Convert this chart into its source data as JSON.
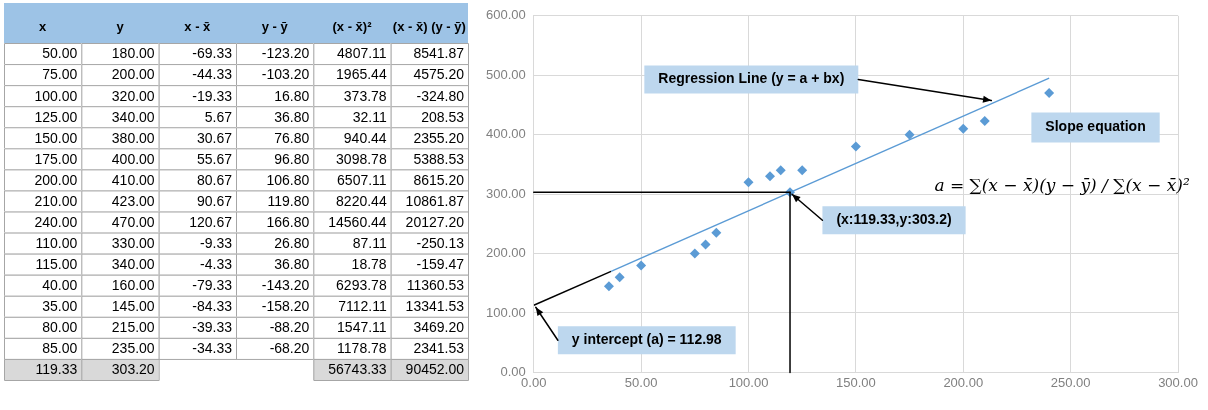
{
  "chart_data": [
    {
      "type": "heatmap",
      "ylabel": "x",
      "categories": [
        "y",
        "x - x̄",
        "y - ȳ",
        "(x - x̄)²",
        "(x - x̄) (y - ȳ)"
      ],
      "y_categories": [
        "50.00",
        "75.00",
        "100.00",
        "125.00",
        "150.00",
        "175.00",
        "200.00",
        "210.00",
        "240.00",
        "110.00",
        "115.00",
        "40.00",
        "35.00",
        "80.00",
        "85.00",
        "119.33"
      ],
      "cells": [
        [
          180,
          -69.33,
          -123.2,
          4807.11,
          8541.87
        ],
        [
          200,
          -44.33,
          -103.2,
          1965.44,
          4575.2
        ],
        [
          320,
          -19.33,
          16.8,
          373.78,
          -324.8
        ],
        [
          340,
          5.67,
          36.8,
          32.11,
          208.53
        ],
        [
          380,
          30.67,
          76.8,
          940.44,
          2355.2
        ],
        [
          400,
          55.67,
          96.8,
          3098.78,
          5388.53
        ],
        [
          410,
          80.67,
          106.8,
          6507.11,
          8615.2
        ],
        [
          423,
          90.67,
          119.8,
          8220.44,
          10861.87
        ],
        [
          470,
          120.67,
          166.8,
          14560.44,
          20127.2
        ],
        [
          330,
          -9.33,
          26.8,
          87.11,
          -250.13
        ],
        [
          340,
          -4.33,
          36.8,
          18.78,
          -159.47
        ],
        [
          160,
          -79.33,
          -143.2,
          6293.78,
          11360.53
        ],
        [
          145,
          -84.33,
          -158.2,
          7112.11,
          13341.53
        ],
        [
          215,
          -39.33,
          -88.2,
          1547.11,
          3469.2
        ],
        [
          235,
          -34.33,
          -68.2,
          1178.78,
          2341.53
        ],
        [
          303.2,
          null,
          null,
          56743.33,
          90452
        ]
      ],
      "cell_labels": [
        [
          "180.00",
          "-69.33",
          "-123.20",
          "4807.11",
          "8541.87"
        ],
        [
          "200.00",
          "-44.33",
          "-103.20",
          "1965.44",
          "4575.20"
        ],
        [
          "320.00",
          "-19.33",
          "16.80",
          "373.78",
          "-324.80"
        ],
        [
          "340.00",
          "5.67",
          "36.80",
          "32.11",
          "208.53"
        ],
        [
          "380.00",
          "30.67",
          "76.80",
          "940.44",
          "2355.20"
        ],
        [
          "400.00",
          "55.67",
          "96.80",
          "3098.78",
          "5388.53"
        ],
        [
          "410.00",
          "80.67",
          "106.80",
          "6507.11",
          "8615.20"
        ],
        [
          "423.00",
          "90.67",
          "119.80",
          "8220.44",
          "10861.87"
        ],
        [
          "470.00",
          "120.67",
          "166.80",
          "14560.44",
          "20127.20"
        ],
        [
          "330.00",
          "-9.33",
          "26.80",
          "87.11",
          "-250.13"
        ],
        [
          "340.00",
          "-4.33",
          "36.80",
          "18.78",
          "-159.47"
        ],
        [
          "160.00",
          "-79.33",
          "-143.20",
          "6293.78",
          "11360.53"
        ],
        [
          "145.00",
          "-84.33",
          "-158.20",
          "7112.11",
          "13341.53"
        ],
        [
          "215.00",
          "-39.33",
          "-88.20",
          "1547.11",
          "3469.20"
        ],
        [
          "235.00",
          "-34.33",
          "-68.20",
          "1178.78",
          "2341.53"
        ],
        [
          "303.20",
          null,
          null,
          "56743.33",
          "90452.00"
        ]
      ]
    },
    {
      "type": "scatter",
      "xlim": [
        0,
        300
      ],
      "ylim": [
        0,
        600
      ],
      "xticks": [
        {
          "value": 0,
          "label": "0.00"
        },
        {
          "value": 50,
          "label": "50.00"
        },
        {
          "value": 100,
          "label": "100.00"
        },
        {
          "value": 150,
          "label": "150.00"
        },
        {
          "value": 200,
          "label": "200.00"
        },
        {
          "value": 250,
          "label": "250.00"
        },
        {
          "value": 300,
          "label": "300.00"
        }
      ],
      "yticks": [
        {
          "value": 0,
          "label": "0.00"
        },
        {
          "value": 100,
          "label": "100.00"
        },
        {
          "value": 200,
          "label": "200.00"
        },
        {
          "value": 300,
          "label": "300.00"
        },
        {
          "value": 400,
          "label": "400.00"
        },
        {
          "value": 500,
          "label": "500.00"
        },
        {
          "value": 600,
          "label": "600.00"
        }
      ],
      "grid": true,
      "legend": false,
      "marker": "diamond",
      "series": [
        {
          "type": "scatter",
          "color": "#5b9bd5",
          "x": [
            50,
            75,
            100,
            125,
            150,
            175,
            200,
            210,
            240,
            110,
            115,
            40,
            35,
            80,
            85,
            119.33
          ],
          "values": [
            180,
            200,
            320,
            340,
            380,
            400,
            410,
            423,
            470,
            330,
            340,
            160,
            145,
            215,
            235,
            303
          ]
        },
        {
          "type": "line",
          "color": "#5b9bd5",
          "marker": "none",
          "x": [
            36,
            240
          ],
          "values": [
            170,
            495
          ]
        },
        {
          "type": "line",
          "color": "#000000",
          "marker": "none",
          "x": [
            0,
            36
          ],
          "values": [
            113,
            170
          ]
        }
      ],
      "ref_lines": [
        {
          "axis": "y",
          "value": 303.2,
          "color": "#000000"
        },
        {
          "axis": "x",
          "value": 119.33,
          "color": "#000000"
        }
      ],
      "annotations": [
        {
          "text": "Regression Line (y = a + bx)",
          "x": 214,
          "y": 454
        },
        {
          "text": "(x:119.33,y:303.2)",
          "x": 119.33,
          "y": 303.2
        },
        {
          "text": "y intercept (a) = 112.98",
          "x": 0,
          "y": 112.98
        },
        "Slope equation",
        "a = ∑(x − x̄)(y − ȳ) / ∑(x − x̄)²"
      ]
    }
  ]
}
